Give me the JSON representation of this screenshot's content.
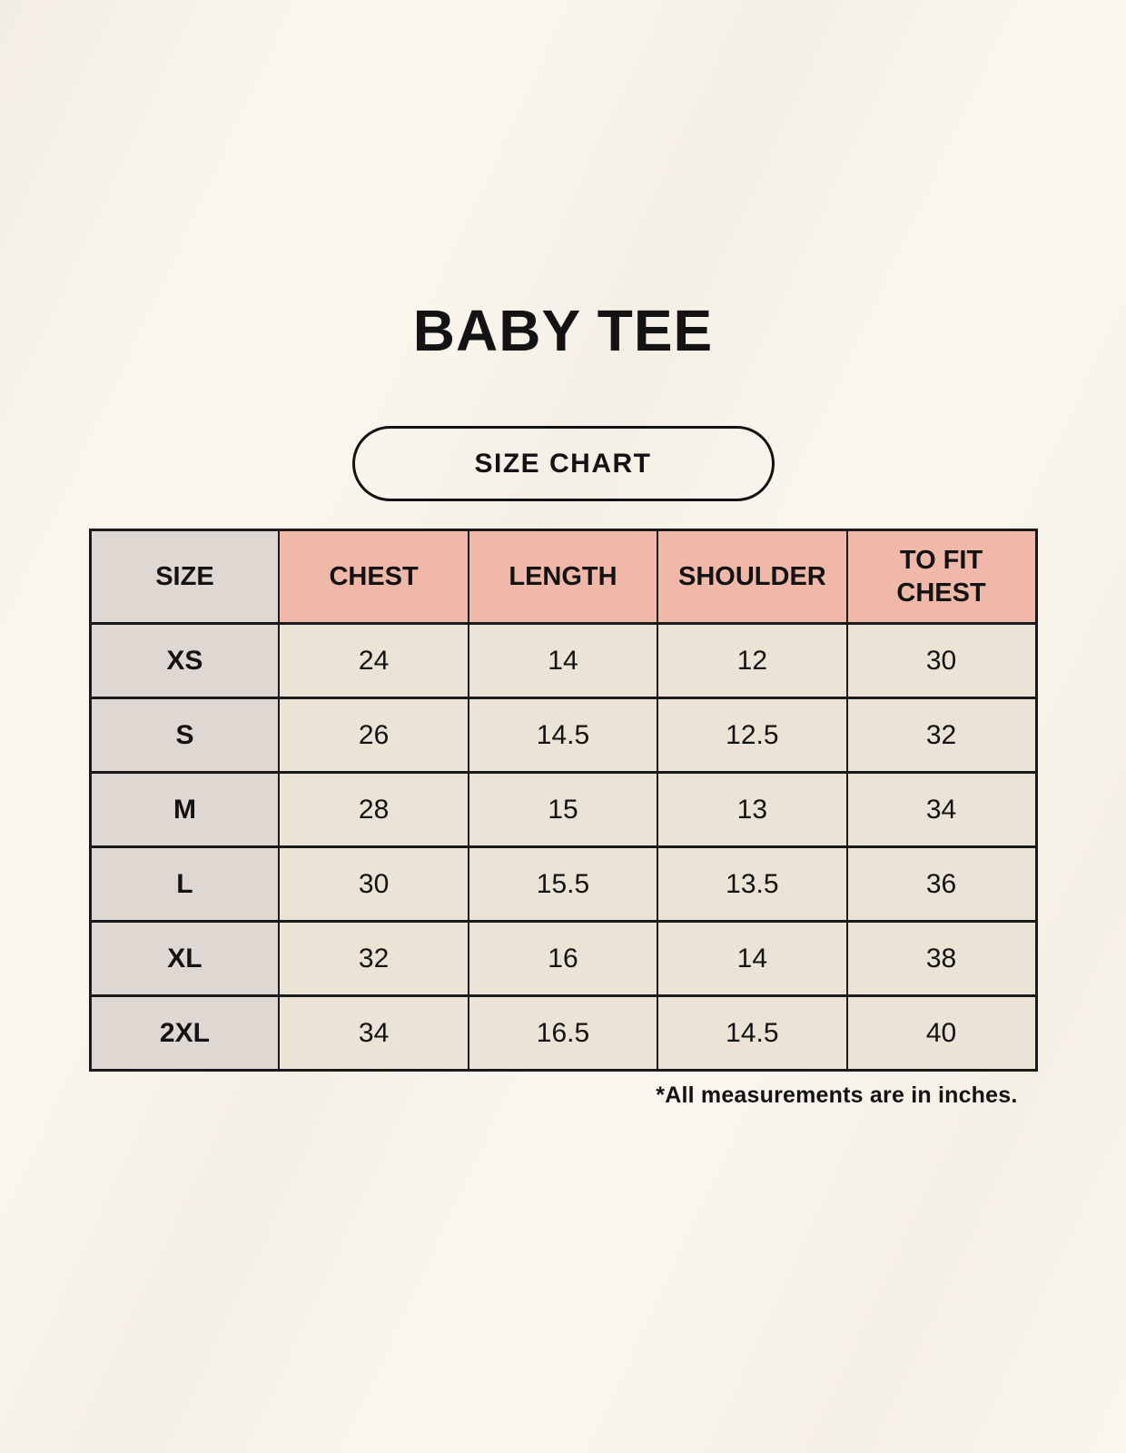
{
  "title": "BABY TEE",
  "size_chart_button_label": "SIZE CHART",
  "footnote": "*All measurements are in inches.",
  "chart_data": {
    "type": "table",
    "title": "BABY TEE",
    "subtitle": "SIZE CHART",
    "columns": [
      "SIZE",
      "CHEST",
      "LENGTH",
      "SHOULDER",
      "TO FIT CHEST"
    ],
    "rows": [
      [
        "XS",
        "24",
        "14",
        "12",
        "30"
      ],
      [
        "S",
        "26",
        "14.5",
        "12.5",
        "32"
      ],
      [
        "M",
        "28",
        "15",
        "13",
        "34"
      ],
      [
        "L",
        "30",
        "15.5",
        "13.5",
        "36"
      ],
      [
        "XL",
        "32",
        "16",
        "14",
        "38"
      ],
      [
        "2XL",
        "34",
        "16.5",
        "14.5",
        "40"
      ]
    ],
    "footnote": "*All measurements are in inches."
  },
  "colors": {
    "page_background": "#faf6ee",
    "header_pink": "#f0b8a8",
    "size_column_grey": "#ded7d2",
    "cell_cream": "#eae3d6",
    "border": "#1a1a1a",
    "text": "#131313"
  }
}
